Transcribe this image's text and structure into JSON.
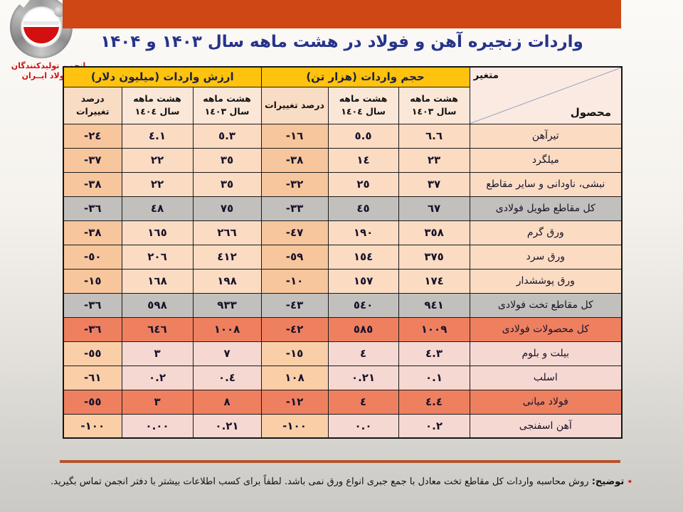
{
  "logo": {
    "org_line1": "انجمن تولیدکنندگان",
    "org_line2": "فــولاد ایــران"
  },
  "title": "واردات زنجیره آهن و فولاد در هشت ماهه سال ۱۴۰۳ و ۱۴۰۴",
  "table": {
    "corner": {
      "top": "متغیر",
      "bottom": "محصول"
    },
    "groups": [
      {
        "label": "حجم واردات (هزار تن)"
      },
      {
        "label": "ارزش واردات (میلیون دلار)"
      }
    ],
    "sub": {
      "y1403_line1": "هشت ماهه",
      "y1403_line2": "سال ١٤٠٣",
      "y1404_line1": "هشت ماهه",
      "y1404_line2": "سال ١٤٠٤",
      "pct": "درصد تغییرات"
    },
    "rows": [
      {
        "product": "تیرآهن",
        "vol_1403": "٦.٦",
        "vol_1404": "٥.٥",
        "vol_pct": "-١٦",
        "val_1403": "٥.٣",
        "val_1404": "٤.١",
        "val_pct": "-٢٤",
        "variant": "normal"
      },
      {
        "product": "میلگرد",
        "vol_1403": "٢٣",
        "vol_1404": "١٤",
        "vol_pct": "-٣٨",
        "val_1403": "٣٥",
        "val_1404": "٢٢",
        "val_pct": "-٣٧",
        "variant": "normal"
      },
      {
        "product": "نبشی، ناودانی و سایر مقاطع",
        "vol_1403": "٣٧",
        "vol_1404": "٢٥",
        "vol_pct": "-٣٢",
        "val_1403": "٣٥",
        "val_1404": "٢٢",
        "val_pct": "-٣٨",
        "variant": "normal"
      },
      {
        "product": "کل مقاطع طویل فولادی",
        "vol_1403": "٦٧",
        "vol_1404": "٤٥",
        "vol_pct": "-٣٣",
        "val_1403": "٧٥",
        "val_1404": "٤٨",
        "val_pct": "-٣٦",
        "variant": "gray"
      },
      {
        "product": "ورق گرم",
        "vol_1403": "٣٥٨",
        "vol_1404": "١٩٠",
        "vol_pct": "-٤٧",
        "val_1403": "٢٦٦",
        "val_1404": "١٦٥",
        "val_pct": "-٣٨",
        "variant": "normal"
      },
      {
        "product": "ورق سرد",
        "vol_1403": "٣٧٥",
        "vol_1404": "١٥٤",
        "vol_pct": "-٥٩",
        "val_1403": "٤١٢",
        "val_1404": "٢٠٦",
        "val_pct": "-٥٠",
        "variant": "normal"
      },
      {
        "product": "ورق پوششدار",
        "vol_1403": "١٧٤",
        "vol_1404": "١٥٧",
        "vol_pct": "-١٠",
        "val_1403": "١٩٨",
        "val_1404": "١٦٨",
        "val_pct": "-١٥",
        "variant": "normal"
      },
      {
        "product": "کل مقاطع تخت فولادی",
        "vol_1403": "٩٤١",
        "vol_1404": "٥٤٠",
        "vol_pct": "-٤٣",
        "val_1403": "٩٣٣",
        "val_1404": "٥٩٨",
        "val_pct": "-٣٦",
        "variant": "gray"
      },
      {
        "product": "کل محصولات فولادی",
        "vol_1403": "١٠٠٩",
        "vol_1404": "٥٨٥",
        "vol_pct": "-٤٢",
        "val_1403": "١٠٠٨",
        "val_1404": "٦٤٦",
        "val_pct": "-٣٦",
        "variant": "salmon"
      },
      {
        "product": "بیلت و بلوم",
        "vol_1403": "٤.٣",
        "vol_1404": "٤",
        "vol_pct": "-١٥",
        "val_1403": "٧",
        "val_1404": "٣",
        "val_pct": "-٥٥",
        "variant": "pink"
      },
      {
        "product": "اسلب",
        "vol_1403": "٠.١",
        "vol_1404": "٠.٢١",
        "vol_pct": "١٠٨",
        "val_1403": "٠.٤",
        "val_1404": "٠.٢",
        "val_pct": "-٦١",
        "variant": "pink"
      },
      {
        "product": "فولاد میانی",
        "vol_1403": "٤.٤",
        "vol_1404": "٤",
        "vol_pct": "-١٢",
        "val_1403": "٨",
        "val_1404": "٣",
        "val_pct": "-٥٥",
        "variant": "salmon"
      },
      {
        "product": "آهن اسفنجی",
        "vol_1403": "٠.٢",
        "vol_1404": "٠.٠",
        "vol_pct": "-١٠٠",
        "val_1403": "٠.٢١",
        "val_1404": "٠.٠٠",
        "val_pct": "-١٠٠",
        "variant": "pink"
      }
    ]
  },
  "footnote": {
    "star": "٭ ",
    "label": "توضیح:",
    "text": " روش محاسبه واردات کل مقاطع تخت معادل با جمع جبری انواع ورق نمی باشد. لطفاً برای کسب اطلاعات بیشتر با دفتر انجمن تماس بگیرید."
  },
  "colors": {
    "banner": "#CE4715",
    "title": "#26338C",
    "group_header_bg": "#FFC20E",
    "group_header_text": "#1A2240",
    "row_peach": "#FBDCC3",
    "row_peach_pct": "#F7C69C",
    "row_pink": "#F6D8D2",
    "row_pink_pct": "#FACFA8",
    "total_gray": "#C2C0BC",
    "total_salmon": "#EE8060",
    "divider": "#B5532D",
    "logo_red": "#CC1111"
  }
}
